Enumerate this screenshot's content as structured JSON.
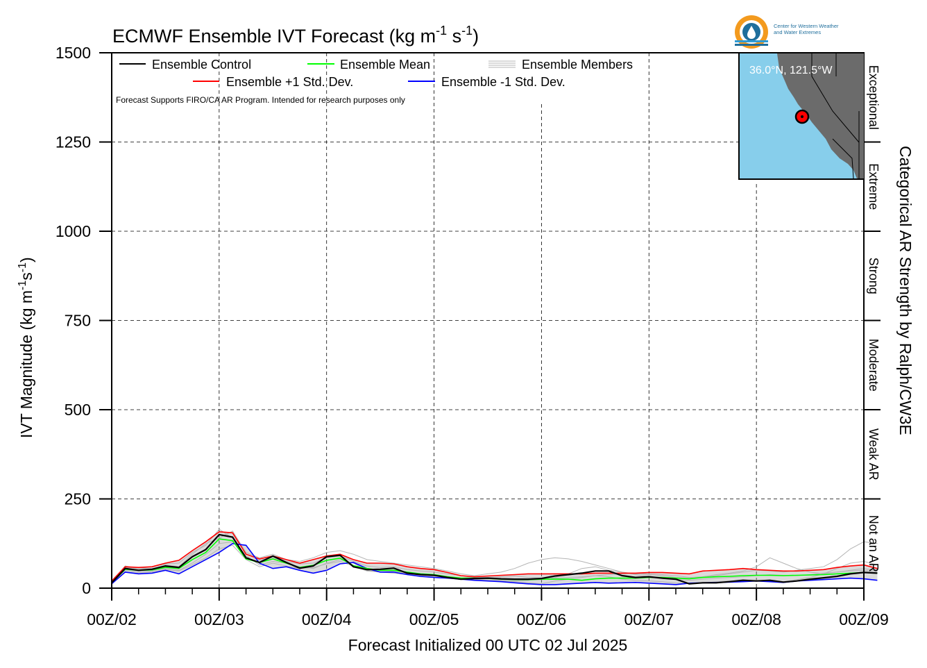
{
  "title_text": "ECMWF Ensemble IVT Forecast (kg m",
  "title_unit_parts": [
    "-1",
    " s",
    "-1",
    ")"
  ],
  "logo": {
    "name": "Center for Western Weather and Water Extremes",
    "line1": "Center for Western Weather",
    "line2": "and Water Extremes",
    "colors": {
      "orange": "#F39A1E",
      "blue": "#1F6E9C",
      "light_blue": "#2E9BD6"
    }
  },
  "note": "Forecast Supports FIRO/CA AR Program. Intended for research purposes only",
  "legend": {
    "control": "Ensemble Control",
    "mean": "Ensemble Mean",
    "members": "Ensemble Members",
    "plus": "Ensemble +1 Std. Dev.",
    "minus": "Ensemble -1 Std. Dev."
  },
  "inset": {
    "label": "36.0°N, 121.5°W",
    "ocean_color": "#87CEEB",
    "land_color": "#6b6b6b",
    "marker_color": "#ff0000"
  },
  "right_label": "Categorical AR Strength by Ralph/CW3E",
  "categories": [
    "Exceptional",
    "Extreme",
    "Strong",
    "Moderate",
    "Weak AR",
    "Not an AR"
  ],
  "ylabel_text": "IVT Magnitude (kg m",
  "xlabel": "Forecast Initialized 00 UTC 02 Jul 2025",
  "chart_data": {
    "type": "line",
    "title": "ECMWF Ensemble IVT Forecast (kg m-1 s-1)",
    "xlabel": "Forecast Initialized 00 UTC 02 Jul 2025",
    "ylabel": "IVT Magnitude (kg m-1 s-1)",
    "ylim": [
      0,
      1500
    ],
    "yticks": [
      0,
      250,
      500,
      750,
      1000,
      1250,
      1500
    ],
    "xlim_hours": [
      0,
      168
    ],
    "x_ticks": [
      "00Z/02",
      "00Z/03",
      "00Z/04",
      "00Z/05",
      "00Z/06",
      "00Z/07",
      "00Z/08",
      "00Z/09"
    ],
    "category_bounds": [
      250,
      500,
      750,
      1000,
      1250
    ],
    "grid": true,
    "legend_position": "top",
    "x_step_hours": 3,
    "colors": {
      "control": "#000000",
      "mean": "#00ff00",
      "plus": "#ff0000",
      "minus": "#0000ff",
      "members": "#b4b4b4",
      "spread": "#999999"
    },
    "series": [
      {
        "name": "Ensemble Control",
        "color": "#000000",
        "values": [
          15,
          55,
          50,
          53,
          62,
          58,
          88,
          108,
          150,
          143,
          85,
          72,
          90,
          72,
          56,
          62,
          88,
          92,
          60,
          52,
          53,
          56,
          42,
          38,
          36,
          30,
          25,
          27,
          28,
          26,
          25,
          25,
          27,
          34,
          38,
          42,
          48,
          48,
          35,
          30,
          32,
          28,
          25,
          12,
          15,
          15,
          18,
          22,
          20,
          22,
          17,
          20,
          25,
          29,
          33,
          40,
          44,
          42
        ]
      },
      {
        "name": "Ensemble Mean",
        "color": "#00ff00",
        "values": [
          15,
          53,
          50,
          51,
          58,
          55,
          80,
          100,
          138,
          133,
          82,
          72,
          82,
          70,
          58,
          64,
          78,
          84,
          63,
          55,
          50,
          50,
          45,
          40,
          38,
          32,
          28,
          28,
          27,
          25,
          24,
          24,
          25,
          25,
          25,
          22,
          26,
          28,
          28,
          28,
          30,
          30,
          28,
          26,
          30,
          32,
          33,
          35,
          36,
          36,
          35,
          36,
          37,
          38,
          40,
          42,
          44,
          42
        ]
      },
      {
        "name": "Ensemble +1 Std. Dev.",
        "color": "#ff0000",
        "values": [
          20,
          60,
          58,
          60,
          70,
          78,
          105,
          130,
          158,
          155,
          95,
          82,
          90,
          80,
          70,
          80,
          90,
          95,
          80,
          70,
          70,
          68,
          60,
          55,
          52,
          44,
          35,
          32,
          34,
          36,
          38,
          40,
          40,
          40,
          40,
          40,
          42,
          42,
          42,
          42,
          44,
          44,
          42,
          40,
          48,
          50,
          52,
          55,
          52,
          50,
          48,
          48,
          50,
          52,
          58,
          62,
          65,
          55
        ]
      },
      {
        "name": "Ensemble -1 Std. Dev.",
        "color": "#0000ff",
        "values": [
          12,
          45,
          40,
          42,
          50,
          40,
          60,
          80,
          100,
          125,
          120,
          70,
          55,
          60,
          50,
          42,
          50,
          68,
          72,
          55,
          45,
          45,
          38,
          33,
          30,
          28,
          25,
          22,
          20,
          18,
          15,
          12,
          10,
          10,
          12,
          14,
          16,
          14,
          15,
          16,
          14,
          12,
          10,
          14,
          15,
          16,
          17,
          18,
          20,
          18,
          16,
          20,
          22,
          24,
          26,
          28,
          26,
          22
        ]
      }
    ],
    "members_extra": [
      [
        15,
        50,
        45,
        48,
        55,
        50,
        70,
        95,
        125,
        130,
        90,
        65,
        75,
        70,
        60,
        55,
        70,
        80,
        70,
        50,
        45,
        48,
        40,
        38,
        35,
        30,
        28,
        26,
        22,
        20,
        18,
        15,
        12,
        20,
        25,
        30,
        35,
        32,
        25,
        22,
        20,
        18,
        14,
        12,
        14,
        18,
        20,
        24,
        22,
        20,
        18,
        24,
        30,
        40,
        55,
        70,
        75,
        65
      ],
      [
        18,
        62,
        55,
        55,
        65,
        60,
        95,
        125,
        140,
        160,
        100,
        85,
        95,
        80,
        75,
        85,
        100,
        105,
        95,
        80,
        75,
        70,
        65,
        60,
        55,
        48,
        40,
        35,
        40,
        45,
        55,
        70,
        80,
        85,
        82,
        75,
        65,
        55,
        45,
        40,
        38,
        35,
        30,
        28,
        30,
        35,
        40,
        45,
        50,
        48,
        45,
        50,
        55,
        60,
        80,
        110,
        130,
        125
      ],
      [
        14,
        45,
        42,
        45,
        52,
        48,
        65,
        85,
        110,
        120,
        80,
        60,
        70,
        62,
        55,
        58,
        68,
        75,
        62,
        48,
        45,
        42,
        38,
        32,
        30,
        28,
        25,
        24,
        22,
        22,
        20,
        22,
        24,
        28,
        30,
        32,
        35,
        38,
        40,
        42,
        40,
        38,
        35,
        30,
        32,
        38,
        42,
        48,
        60,
        85,
        70,
        55,
        45,
        40,
        45,
        50,
        55,
        48
      ],
      [
        16,
        58,
        55,
        60,
        68,
        70,
        100,
        120,
        165,
        140,
        90,
        78,
        85,
        75,
        68,
        70,
        85,
        90,
        75,
        62,
        58,
        60,
        52,
        48,
        45,
        40,
        35,
        30,
        30,
        32,
        34,
        30,
        28,
        30,
        40,
        55,
        60,
        50,
        45,
        38,
        32,
        28,
        25,
        22,
        25,
        28,
        30,
        32,
        35,
        38,
        36,
        35,
        38,
        42,
        45,
        48,
        50,
        46
      ]
    ]
  }
}
